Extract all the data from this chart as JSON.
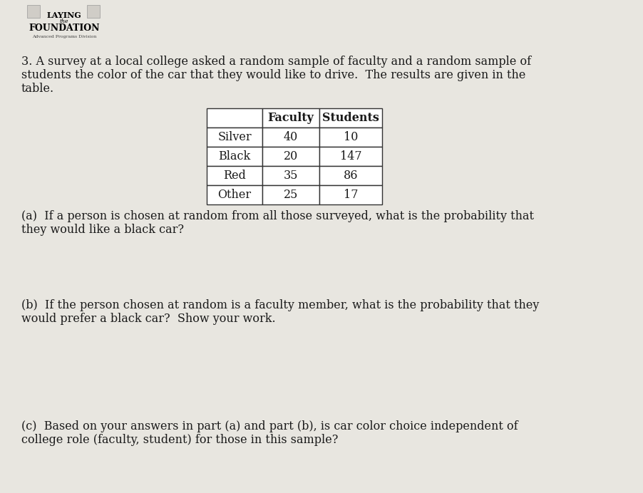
{
  "background_color": "#cccac3",
  "page_bg": "#e8e6e0",
  "logo_text_line1": "LAYING",
  "logo_text_line2": "the",
  "logo_text_line3": "FOUNDATION",
  "logo_subtext": "Advanced Programs Division",
  "question_number": "3.",
  "intro_line1": "A survey at a local college asked a random sample of faculty and a random sample of",
  "intro_line2": "students the color of the car that they would like to drive.  The results are given in the",
  "intro_line3": "table.",
  "table_headers": [
    "",
    "Faculty",
    "Students"
  ],
  "table_rows": [
    [
      "Silver",
      "40",
      "10"
    ],
    [
      "Black",
      "20",
      "147"
    ],
    [
      "Red",
      "35",
      "86"
    ],
    [
      "Other",
      "25",
      "17"
    ]
  ],
  "part_a_line1": "(a)  If a person is chosen at random from all those surveyed, what is the probability that",
  "part_a_line2": "they would like a black car?",
  "part_b_line1": "(b)  If the person chosen at random is a faculty member, what is the probability that they",
  "part_b_line2": "would prefer a black car?  Show your work.",
  "part_c_line1": "(c)  Based on your answers in part (a) and part (b), is car color choice independent of",
  "part_c_line2": "college role (faculty, student) for those in this sample?",
  "text_color": "#1a1a1a",
  "table_bg": "#ffffff",
  "font_size": 11.5,
  "logo_font_size1": 8.0,
  "logo_font_size2": 5.5,
  "logo_font_size3": 9.0,
  "logo_subtext_size": 4.5
}
